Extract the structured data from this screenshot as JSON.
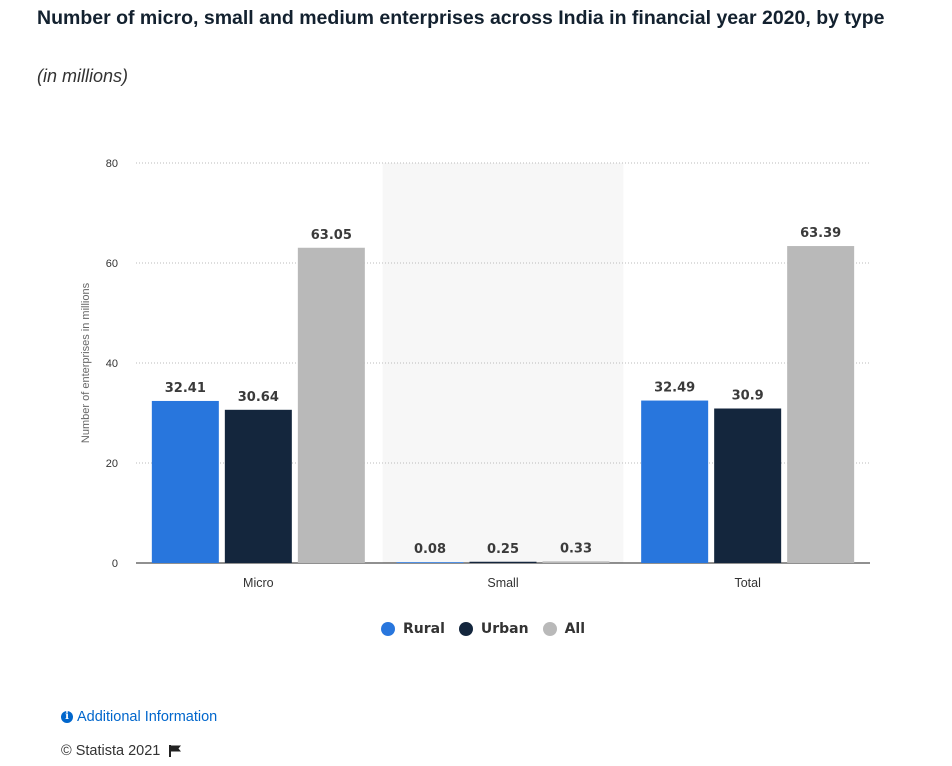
{
  "header": {
    "title": "Number of micro, small and medium enterprises across India in financial year 2020, by type",
    "subtitle": "(in millions)"
  },
  "chart_data": {
    "type": "bar",
    "categories": [
      "Micro",
      "Small",
      "Total"
    ],
    "series": [
      {
        "name": "Rural",
        "color": "#2876dd",
        "values": [
          32.41,
          0.08,
          32.49
        ]
      },
      {
        "name": "Urban",
        "color": "#14263d",
        "values": [
          30.64,
          0.25,
          30.9
        ]
      },
      {
        "name": "All",
        "color": "#b9b9b9",
        "values": [
          63.05,
          0.33,
          63.39
        ]
      }
    ],
    "data_labels": [
      [
        "32.41",
        "0.08",
        "32.49"
      ],
      [
        "30.64",
        "0.25",
        "30.9"
      ],
      [
        "63.05",
        "0.33",
        "63.39"
      ]
    ],
    "ylabel": "Number of enterprises in millions",
    "ylim": [
      0,
      80
    ],
    "yticks": [
      0,
      20,
      40,
      60,
      80
    ],
    "grid": true,
    "highlighted_category": "Small",
    "legend_position": "bottom"
  },
  "footer": {
    "info_label": "Additional Information",
    "copyright": "© Statista 2021"
  },
  "icons": {
    "info": "info-circle-icon",
    "flag": "flag-icon"
  }
}
